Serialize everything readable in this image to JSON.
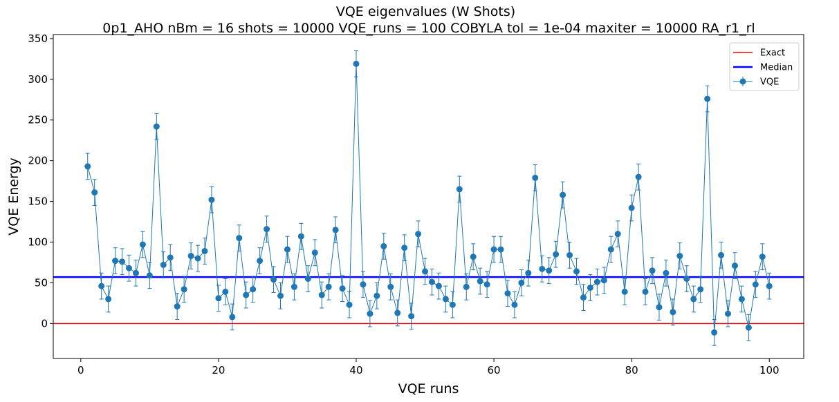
{
  "chart_data": {
    "type": "line",
    "title": "VQE eigenvalues (W Shots)",
    "subtitle": "0p1_AHO    nBm = 16    shots = 10000   VQE_runs = 100    COBYLA    tol = 1e-04    maxiter = 10000    RA_r1_rl",
    "xlabel": "VQE runs",
    "ylabel": "VQE Energy",
    "xlim": [
      -4,
      105
    ],
    "ylim": [
      -43,
      355
    ],
    "xticks": [
      0,
      20,
      40,
      60,
      80,
      100
    ],
    "yticks": [
      0,
      50,
      100,
      150,
      200,
      250,
      300,
      350
    ],
    "grid": false,
    "legend_position": "top-right",
    "legend": [
      "Exact",
      "Median",
      "VQE"
    ],
    "exact_value": 0,
    "median_value": 57,
    "error": 16,
    "series": [
      {
        "name": "VQE",
        "x": [
          1,
          2,
          3,
          4,
          5,
          6,
          7,
          8,
          9,
          10,
          11,
          12,
          13,
          14,
          15,
          16,
          17,
          18,
          19,
          20,
          21,
          22,
          23,
          24,
          25,
          26,
          27,
          28,
          29,
          30,
          31,
          32,
          33,
          34,
          35,
          36,
          37,
          38,
          39,
          40,
          41,
          42,
          43,
          44,
          45,
          46,
          47,
          48,
          49,
          50,
          51,
          52,
          53,
          54,
          55,
          56,
          57,
          58,
          59,
          60,
          61,
          62,
          63,
          64,
          65,
          66,
          67,
          68,
          69,
          70,
          71,
          72,
          73,
          74,
          75,
          76,
          77,
          78,
          79,
          80,
          81,
          82,
          83,
          84,
          85,
          86,
          87,
          88,
          89,
          90,
          91,
          92,
          93,
          94,
          95,
          96,
          97,
          98,
          99,
          100
        ],
        "values": [
          193,
          161,
          46,
          30,
          77,
          76,
          68,
          62,
          97,
          59,
          242,
          72,
          81,
          21,
          42,
          83,
          80,
          89,
          152,
          31,
          39,
          8,
          105,
          35,
          42,
          77,
          116,
          54,
          34,
          91,
          45,
          107,
          55,
          87,
          35,
          45,
          115,
          43,
          23,
          319,
          48,
          12,
          34,
          95,
          45,
          13,
          93,
          9,
          110,
          64,
          51,
          46,
          30,
          23,
          165,
          45,
          82,
          52,
          48,
          91,
          91,
          37,
          23,
          50,
          62,
          179,
          67,
          65,
          85,
          158,
          84,
          64,
          32,
          44,
          51,
          53,
          91,
          110,
          39,
          142,
          180,
          39,
          65,
          20,
          62,
          14,
          83,
          55,
          30,
          42,
          276,
          -11,
          84,
          12,
          71,
          30,
          -5,
          48,
          82,
          46
        ]
      }
    ],
    "colors": {
      "exact": "#ff0000",
      "median": "#0000ff",
      "vqe": "#1f77b4"
    }
  }
}
